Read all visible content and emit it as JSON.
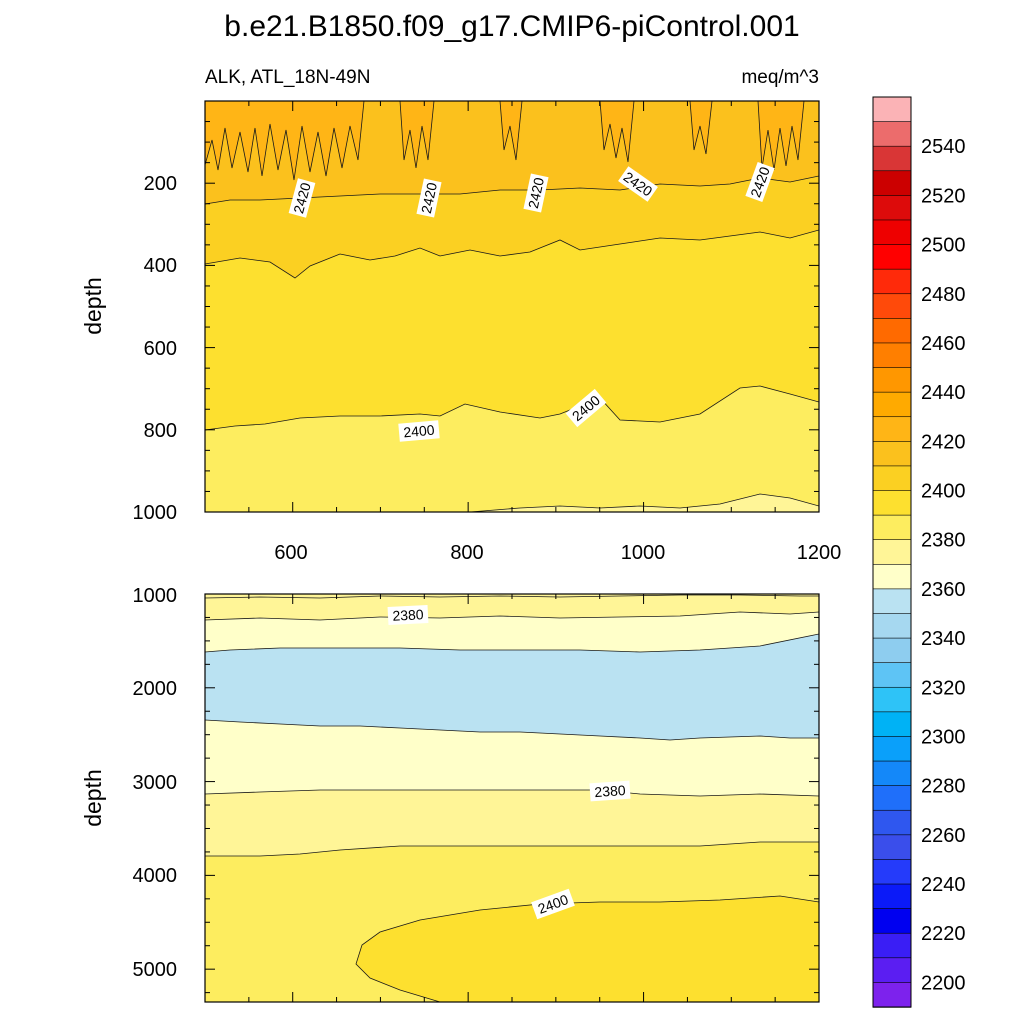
{
  "title": "b.e21.B1850.f09_g17.CMIP6-piControl.001",
  "chart_data": [
    {
      "type": "contour",
      "panel": "upper",
      "left_string": "ALK, ATL_18N-49N",
      "right_string": "meq/m^3",
      "ylabel": "depth",
      "xlabel": "",
      "xlim": [
        500,
        1200
      ],
      "ylim": [
        0,
        1000
      ],
      "y_reversed": true,
      "xticks": [
        "600",
        "800",
        "1000",
        "1200"
      ],
      "yticks": [
        "200",
        "400",
        "600",
        "800",
        "1000"
      ],
      "contour_labels": [
        "2420",
        "2420",
        "2420",
        "2420",
        "2420",
        "2400",
        "2400"
      ]
    },
    {
      "type": "contour",
      "panel": "lower",
      "ylabel": "depth",
      "xlabel": "",
      "xlim": [
        500,
        1200
      ],
      "ylim": [
        1000,
        5350
      ],
      "y_reversed": true,
      "yticks": [
        "1000",
        "2000",
        "3000",
        "4000",
        "5000"
      ],
      "contour_labels": [
        "2380",
        "2380",
        "2400"
      ]
    }
  ],
  "colorbar": {
    "labels": [
      "2540",
      "2520",
      "2500",
      "2480",
      "2460",
      "2440",
      "2420",
      "2400",
      "2380",
      "2360",
      "2340",
      "2320",
      "2300",
      "2280",
      "2260",
      "2240",
      "2220",
      "2200"
    ],
    "colors": [
      "#fbb3b6",
      "#ec6c6c",
      "#d93636",
      "#cc0000",
      "#dd0b0b",
      "#ee0000",
      "#ff0000",
      "#ff2a0a",
      "#ff4a0a",
      "#ff6a00",
      "#ff7f00",
      "#ff9700",
      "#ffaa00",
      "#ffb516",
      "#fbc11d",
      "#fbd022",
      "#fde02f",
      "#fded5f",
      "#fff597",
      "#ffffc9",
      "#bae2f2",
      "#a6d8f0",
      "#8ecdef",
      "#5ec4f5",
      "#2ec3f7",
      "#00b2f5",
      "#0aa0fa",
      "#1488f9",
      "#1f6ffa",
      "#2f57ef",
      "#3a4eeb",
      "#253bfa",
      "#0b1af8",
      "#0000f0",
      "#3a1ef5",
      "#5b1ef2",
      "#7d22ed"
    ]
  }
}
